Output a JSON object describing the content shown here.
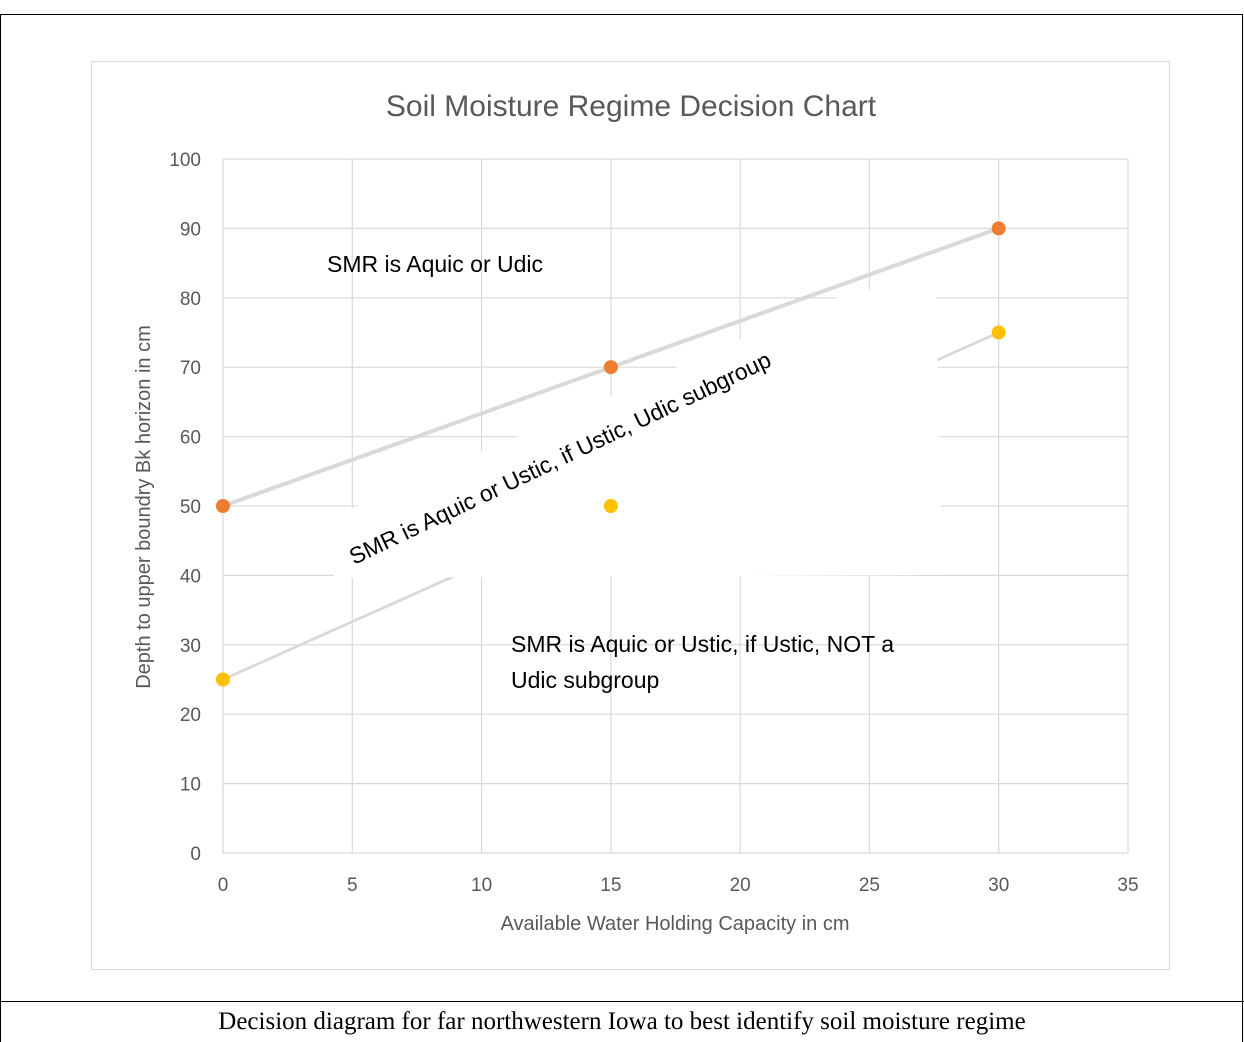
{
  "caption": "Decision diagram for far northwestern Iowa to best identify soil moisture regime",
  "chart_data": {
    "type": "line",
    "title": "Soil Moisture Regime Decision Chart",
    "xlabel": "Available Water Holding Capacity in cm",
    "ylabel": "Depth to upper boundry Bk horizon in cm",
    "xlim": [
      0,
      35
    ],
    "ylim": [
      0,
      100
    ],
    "xticks": [
      0,
      5,
      10,
      15,
      20,
      25,
      30,
      35
    ],
    "yticks": [
      0,
      10,
      20,
      30,
      40,
      50,
      60,
      70,
      80,
      90,
      100
    ],
    "grid": true,
    "series": [
      {
        "x": [
          0,
          15,
          30
        ],
        "y": [
          50,
          70,
          90
        ],
        "line_color": "#d9d9d9",
        "marker_color": "#ed7d31"
      },
      {
        "x": [
          0,
          15,
          30
        ],
        "y": [
          25,
          50,
          75
        ],
        "line_color": "#d9d9d9",
        "marker_color": "#ffc000"
      }
    ],
    "annotations": [
      {
        "text": "SMR is Aquic or Udic"
      },
      {
        "text": "SMR is Aquic or Ustic, if Ustic, Udic subgroup"
      },
      {
        "text": "SMR is Aquic or Ustic, if Ustic, NOT a",
        "text2": "Udic subgroup"
      }
    ]
  }
}
